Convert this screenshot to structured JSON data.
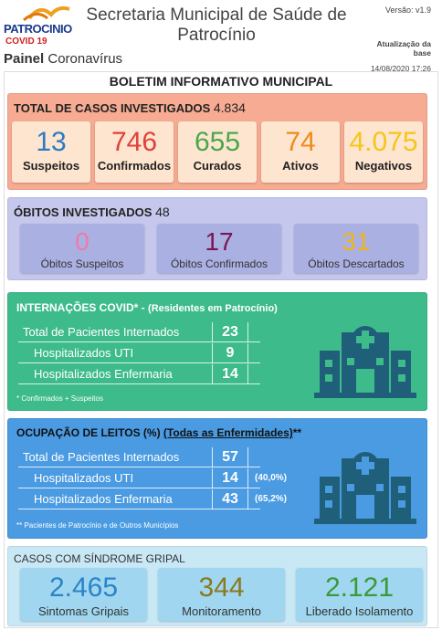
{
  "header": {
    "logo": "PATROCINIO",
    "logo_sub": "COVID 19",
    "title": "Secretaria Municipal de Saúde de Patrocínio",
    "panel_bold": "Painel",
    "panel_rest": "Coronavírus",
    "version": "Versão: v1.9",
    "update_label": "Atualização da base",
    "update_date": "14/08/2020 17:26"
  },
  "bulletin": {
    "title": "BOLETIM INFORMATIVO MUNICIPAL"
  },
  "cases": {
    "title": "TOTAL DE CASOS INVESTIGADOS",
    "total": "4.834",
    "cards": [
      {
        "value": "13",
        "label": "Suspeitos"
      },
      {
        "value": "746",
        "label": "Confirmados"
      },
      {
        "value": "655",
        "label": "Curados"
      },
      {
        "value": "74",
        "label": "Ativos"
      },
      {
        "value": "4.075",
        "label": "Negativos"
      }
    ]
  },
  "deaths": {
    "title": "ÓBITOS INVESTIGADOS",
    "total": "48",
    "cards": [
      {
        "value": "0",
        "label": "Óbitos Suspeitos"
      },
      {
        "value": "17",
        "label": "Óbitos Confirmados"
      },
      {
        "value": "31",
        "label": "Óbitos Descartados"
      }
    ]
  },
  "hospital": {
    "title": "INTERNAÇÕES COVID* -",
    "subtitle": "(Residentes em Patrocínio)",
    "rows": [
      {
        "label": "Total de Pacientes Internados",
        "value": "23"
      },
      {
        "label": "Hospitalizados UTI",
        "value": "9"
      },
      {
        "label": "Hospitalizados Enfermaria",
        "value": "14"
      }
    ],
    "note": "* Confirmados + Suspeitos"
  },
  "beds": {
    "title": "OCUPAÇÃO DE LEITOS (%)",
    "link": "(Todas as Enfermidades)",
    "mark": "**",
    "rows": [
      {
        "label": "Total de Pacientes Internados",
        "value": "57"
      },
      {
        "label": "Hospitalizados UTI",
        "value": "14",
        "pct": "(40,0%)"
      },
      {
        "label": "Hospitalizados Enfermaria",
        "value": "43",
        "pct": "(65,2%)"
      }
    ],
    "note": "** Pacientes de Patrocínio e de Outros Municípios"
  },
  "flu": {
    "title": "CASOS COM SÍNDROME GRIPAL",
    "cards": [
      {
        "value": "2.465",
        "label": "Sintomas Gripais"
      },
      {
        "value": "344",
        "label": "Monitoramento"
      },
      {
        "value": "2.121",
        "label": "Liberado Isolamento"
      }
    ]
  }
}
